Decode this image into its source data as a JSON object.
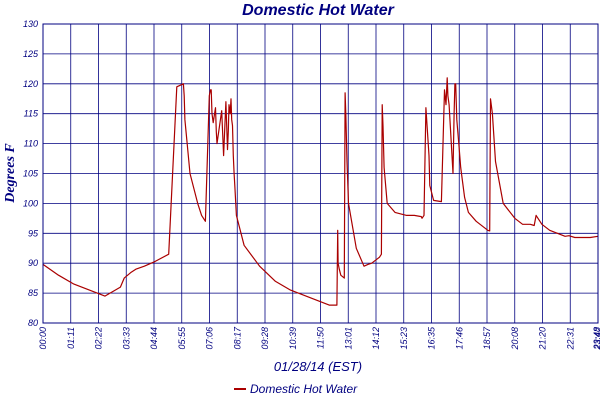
{
  "chart_data": {
    "type": "line",
    "title": "Domestic Hot Water",
    "xlabel": "01/28/14 (EST)",
    "ylabel": "Degrees F",
    "ylim": [
      80,
      130
    ],
    "y_ticks": [
      80,
      85,
      90,
      95,
      100,
      105,
      110,
      115,
      120,
      125,
      130
    ],
    "x_range_minutes": [
      0,
      1435
    ],
    "x_ticks": [
      "00:00",
      "01:11",
      "02:22",
      "03:33",
      "04:44",
      "05:55",
      "07:06",
      "08:17",
      "09:28",
      "10:39",
      "11:50",
      "13:01",
      "14:12",
      "15:23",
      "16:35",
      "17:46",
      "18:57",
      "20:08",
      "21:20",
      "22:31",
      "23:42",
      "23:48"
    ],
    "grid": true,
    "legend_position": "bottom-center",
    "series": [
      {
        "name": "Domestic Hot Water",
        "color": "#aa0000",
        "x": [
          0,
          40,
          80,
          120,
          160,
          200,
          210,
          228,
          240,
          262,
          290,
          325,
          346,
          363,
          365,
          367,
          380,
          400,
          410,
          420,
          430,
          433,
          435,
          437,
          440,
          446,
          448,
          450,
          462,
          467,
          473,
          477,
          479,
          481,
          484,
          486,
          488,
          490,
          492,
          494,
          496,
          500,
          520,
          560,
          600,
          640,
          680,
          740,
          760,
          762,
          763,
          766,
          770,
          779,
          781,
          783,
          786,
          790,
          810,
          830,
          840,
          850,
          870,
          875,
          877,
          879,
          882,
          890,
          910,
          940,
          960,
          978,
          980,
          985,
          990,
          998,
          1000,
          1010,
          1030,
          1038,
          1042,
          1045,
          1047,
          1050,
          1060,
          1063,
          1065,
          1067,
          1070,
          1075,
          1080,
          1090,
          1100,
          1120,
          1150,
          1155,
          1157,
          1162,
          1170,
          1190,
          1220,
          1240,
          1260,
          1270,
          1275,
          1290,
          1310,
          1330,
          1350,
          1360,
          1375,
          1395,
          1415,
          1435
        ],
        "y": [
          89.8,
          88,
          86.5,
          85.5,
          84.5,
          86,
          87.5,
          88.5,
          89,
          89.5,
          90.3,
          91.5,
          119.5,
          120,
          118,
          114,
          105,
          100,
          98,
          97,
          118,
          119,
          119,
          115,
          113.5,
          116,
          112,
          110,
          115.5,
          108,
          117,
          109,
          112,
          116.5,
          115,
          117.5,
          114,
          113,
          108,
          105,
          103,
          98,
          93,
          89.5,
          87,
          85.5,
          84.5,
          83,
          83,
          95.5,
          90,
          89,
          88,
          87.5,
          118.5,
          115,
          107,
          100,
          92.5,
          89.5,
          89.8,
          90,
          91,
          91.5,
          116.5,
          113,
          106,
          100,
          98.5,
          98,
          98,
          97.8,
          97.5,
          98,
          116,
          108,
          103,
          100.5,
          100.3,
          119,
          116.5,
          121,
          118,
          116.5,
          105,
          115,
          120,
          120,
          114,
          110,
          106,
          101,
          98.5,
          97,
          95.5,
          95.4,
          117.5,
          115,
          107,
          100,
          97.5,
          96.5,
          96.5,
          96.3,
          98,
          96.5,
          95.5,
          95,
          94.5,
          94.6,
          94.3,
          94.3,
          94.3,
          94.5
        ]
      }
    ]
  }
}
